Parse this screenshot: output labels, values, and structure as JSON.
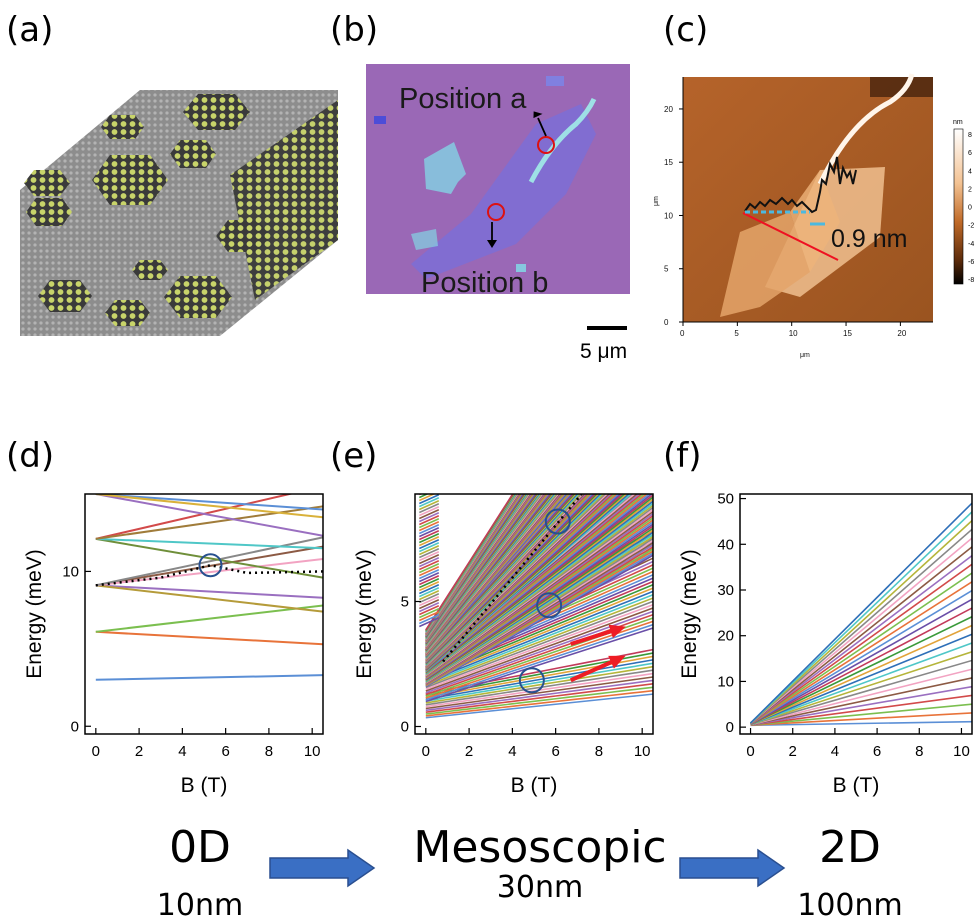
{
  "panels": {
    "a": {
      "label": "(a)"
    },
    "b": {
      "label": "(b)",
      "position_a": "Position a",
      "position_b": "Position b",
      "scale_bar": "5 μm"
    },
    "c": {
      "label": "(c)",
      "step_height": "0.9 nm",
      "unit_x": "μm",
      "unit_y": "μm",
      "colorbar_unit": "nm",
      "x_ticks": [
        "0",
        "5",
        "10",
        "15",
        "20"
      ],
      "y_ticks": [
        "0",
        "5",
        "10",
        "15",
        "20"
      ],
      "colorbar_ticks": [
        "8",
        "6",
        "4",
        "2",
        "0",
        "-2",
        "-4",
        "-6",
        "-8"
      ]
    },
    "d": {
      "label": "(d)"
    },
    "e": {
      "label": "(e)"
    },
    "f": {
      "label": "(f)"
    }
  },
  "bottom": {
    "regimes": [
      {
        "title": "0D",
        "size": "10nm"
      },
      {
        "title": "Mesoscopic",
        "size": "30nm"
      },
      {
        "title": "2D",
        "size": "100nm"
      }
    ],
    "arrow_color": "#3a6fc4"
  },
  "chart_data": [
    {
      "type": "line",
      "panel": "d",
      "xlabel": "B (T)",
      "ylabel": "Energy (meV)",
      "xlim": [
        -0.5,
        10.5
      ],
      "ylim": [
        -0.5,
        15
      ],
      "x_ticks": [
        0,
        2,
        4,
        6,
        8,
        10
      ],
      "y_ticks": [
        0,
        10
      ],
      "series": [
        {
          "color": "#5b8fd6",
          "x": [
            0,
            10.5
          ],
          "y": [
            3.0,
            3.3
          ]
        },
        {
          "color": "#e8733a",
          "x": [
            0,
            10.5
          ],
          "y": [
            6.1,
            5.3
          ]
        },
        {
          "color": "#7bbf4f",
          "x": [
            0,
            10.5
          ],
          "y": [
            6.1,
            7.8
          ]
        },
        {
          "color": "#9a6fc0",
          "x": [
            0,
            10.5
          ],
          "y": [
            9.1,
            8.3
          ]
        },
        {
          "color": "#b59b3a",
          "x": [
            0,
            10.5
          ],
          "y": [
            9.1,
            7.4
          ]
        },
        {
          "color": "#8c5a44",
          "x": [
            0,
            10.5
          ],
          "y": [
            9.1,
            11.6
          ]
        },
        {
          "color": "#f2a3c2",
          "x": [
            0,
            10.5
          ],
          "y": [
            9.1,
            10.8
          ]
        },
        {
          "color": "#888888",
          "x": [
            0,
            10.5
          ],
          "y": [
            9.1,
            12.2
          ]
        },
        {
          "color": "#6f8f3a",
          "x": [
            0,
            10.5
          ],
          "y": [
            12.1,
            9.6
          ]
        },
        {
          "color": "#d24a4a",
          "x": [
            0,
            10.5
          ],
          "y": [
            12.1,
            15.5
          ]
        },
        {
          "color": "#4fc7c7",
          "x": [
            0,
            10.5
          ],
          "y": [
            12.1,
            11.5
          ]
        },
        {
          "color": "#a07c3a",
          "x": [
            0,
            10.5
          ],
          "y": [
            12.1,
            14.2
          ]
        },
        {
          "color": "#9a6fc0",
          "x": [
            0,
            10.5
          ],
          "y": [
            15.0,
            12.3
          ]
        },
        {
          "color": "#e8733a",
          "x": [
            0,
            10.5
          ],
          "y": [
            15.0,
            17.5
          ]
        },
        {
          "color": "#5b8fd6",
          "x": [
            0,
            10.5
          ],
          "y": [
            15.0,
            14.0
          ]
        },
        {
          "color": "#d9b13a",
          "x": [
            0,
            10.5
          ],
          "y": [
            15.0,
            13.5
          ]
        }
      ],
      "dotted": {
        "x": [
          0,
          3,
          5.3,
          7,
          10.5
        ],
        "y": [
          9.1,
          9.6,
          10.4,
          9.9,
          10.0
        ]
      },
      "circles": [
        {
          "x": 5.3,
          "y": 10.4
        }
      ]
    },
    {
      "type": "line",
      "panel": "e",
      "xlabel": "B (T)",
      "ylabel": "Energy (meV)",
      "xlim": [
        -0.5,
        10.5
      ],
      "ylim": [
        -0.3,
        9.3
      ],
      "x_ticks": [
        0,
        2,
        4,
        6,
        8,
        10
      ],
      "y_ticks": [
        0,
        5
      ],
      "circles": [
        {
          "x": 4.9,
          "y": 1.85
        },
        {
          "x": 5.7,
          "y": 4.85
        },
        {
          "x": 6.1,
          "y": 8.2
        }
      ],
      "dotted": {
        "x": [
          0.8,
          7.2
        ],
        "y": [
          2.6,
          9.3
        ]
      }
    },
    {
      "type": "line",
      "panel": "f",
      "xlabel": "B (T)",
      "ylabel": "Energy (meV)",
      "xlim": [
        -0.5,
        10.5
      ],
      "ylim": [
        -1.5,
        51
      ],
      "x_ticks": [
        0,
        2,
        4,
        6,
        8,
        10
      ],
      "y_ticks": [
        0,
        10,
        20,
        30,
        40,
        50
      ],
      "fan_count": 26,
      "fan_max": 49
    }
  ],
  "colors": {
    "optical_bg": "#9a68b6",
    "afm_dark": "#a3571d",
    "afm_light": "#f0c08f",
    "circle_blue": "#27508f",
    "red_arrow": "#ee1c24"
  }
}
